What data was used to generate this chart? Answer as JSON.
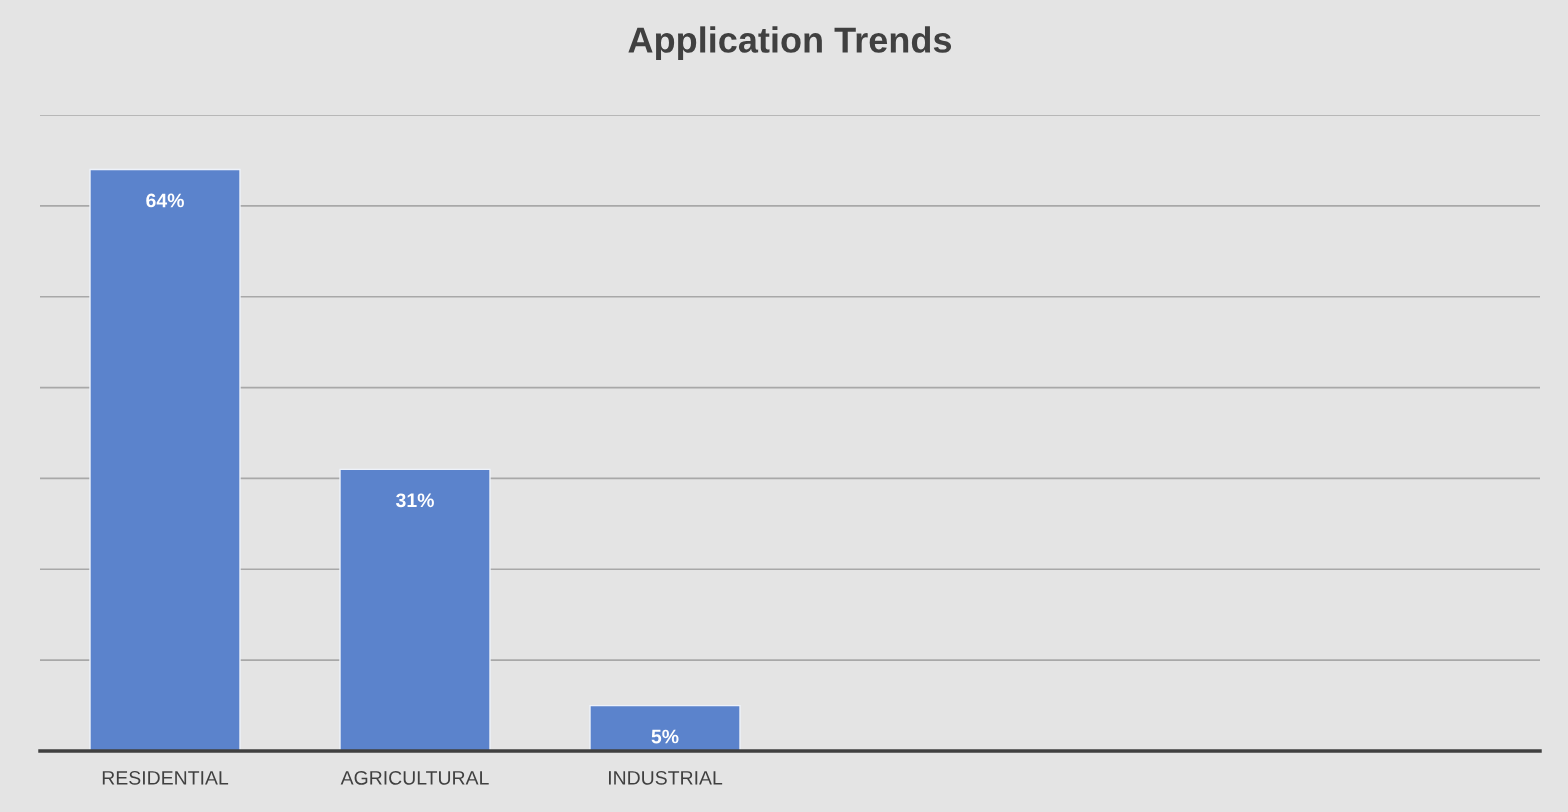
{
  "chart_data": {
    "type": "bar",
    "title": "Application Trends",
    "categories": [
      "RESIDENTIAL",
      "AGRICULTURAL",
      "INDUSTRIAL",
      null,
      null,
      null
    ],
    "values": [
      64,
      31,
      5,
      null,
      null,
      null
    ],
    "color": "#5b83cc",
    "value_labels": [
      "64%",
      "31%",
      "5%",
      null,
      null,
      null
    ],
    "ylim": [
      0,
      70
    ],
    "yticks": [
      {
        "value": 0,
        "label": null
      },
      {
        "value": 10,
        "label": null
      },
      {
        "value": 20,
        "label": null
      },
      {
        "value": 30,
        "label": null
      },
      {
        "value": 40,
        "label": null
      },
      {
        "value": 50,
        "label": null
      },
      {
        "value": 60,
        "label": null
      },
      {
        "value": 70,
        "label": null
      }
    ],
    "tick_labels": "x",
    "grid": "y",
    "legend": false
  }
}
